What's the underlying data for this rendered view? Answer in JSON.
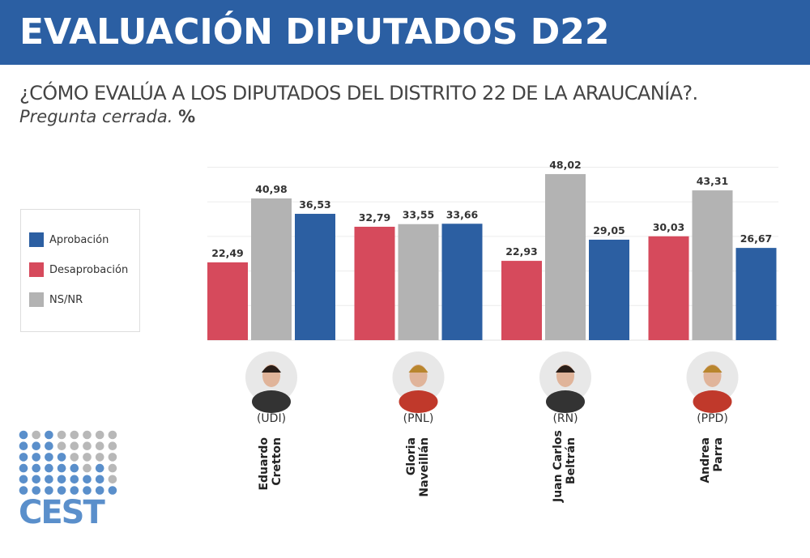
{
  "header": {
    "title": "EVALUACIÓN DIPUTADOS D22"
  },
  "question": "¿CÓMO EVALÚA A LOS DIPUTADOS DEL DISTRITO 22 DE LA ARAUCANÍA?.",
  "subtitle": {
    "italic": "Pregunta cerrada.",
    "unit": "%"
  },
  "logo": {
    "text": "CEST"
  },
  "chart_data": {
    "type": "bar",
    "categories": [
      {
        "party": "(UDI)",
        "name1": "Eduardo",
        "name2": "Cretton"
      },
      {
        "party": "(PNL)",
        "name1": "Gloria",
        "name2": "Naveillán"
      },
      {
        "party": "(RN)",
        "name1": "Juan Carlos",
        "name2": "Beltrán"
      },
      {
        "party": "(PPD)",
        "name1": "Andrea",
        "name2": "Parra"
      }
    ],
    "series": [
      {
        "name": "Desaprobación",
        "color": "#d64a5c",
        "values": [
          22.49,
          32.79,
          22.93,
          30.03
        ],
        "labels": [
          "22,49",
          "32,79",
          "22,93",
          "30,03"
        ]
      },
      {
        "name": "NS/NR",
        "color": "#b3b3b3",
        "values": [
          40.98,
          33.55,
          48.02,
          43.31
        ],
        "labels": [
          "40,98",
          "33,55",
          "48,02",
          "43,31"
        ]
      },
      {
        "name": "Aprobación",
        "color": "#2c5fa2",
        "values": [
          36.53,
          33.66,
          29.05,
          26.67
        ],
        "labels": [
          "36,53",
          "33,66",
          "29,05",
          "26,67"
        ]
      }
    ],
    "legend_order": [
      "Aprobación",
      "Desaprobación",
      "NS/NR"
    ],
    "ylim": [
      0,
      50
    ],
    "grid": true,
    "legend": "left"
  }
}
